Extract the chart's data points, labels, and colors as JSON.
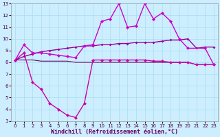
{
  "background_color": "#cceeff",
  "grid_color": "#aaddee",
  "xlim": [
    -0.5,
    23.5
  ],
  "ylim": [
    3,
    13
  ],
  "xlabel": "Windchill (Refroidissement éolien,°C)",
  "xticks": [
    0,
    1,
    2,
    3,
    4,
    5,
    6,
    7,
    8,
    9,
    10,
    11,
    12,
    13,
    14,
    15,
    16,
    17,
    18,
    19,
    20,
    21,
    22,
    23
  ],
  "yticks": [
    3,
    4,
    5,
    6,
    7,
    8,
    9,
    10,
    11,
    12,
    13
  ],
  "lines": [
    {
      "x": [
        0,
        1,
        2,
        3,
        4,
        5,
        6,
        7,
        8,
        9,
        10,
        11,
        12,
        13,
        14,
        15,
        16,
        17,
        18,
        19,
        20,
        22,
        23
      ],
      "y": [
        8.2,
        9.5,
        8.8,
        8.8,
        8.7,
        8.6,
        8.5,
        8.4,
        9.4,
        9.5,
        11.5,
        11.7,
        13.0,
        11.0,
        11.1,
        13.0,
        11.7,
        12.2,
        11.5,
        10.0,
        9.2,
        9.2,
        7.8
      ],
      "color": "#cc00cc",
      "linewidth": 1.0,
      "marker": "D",
      "markersize": 2.5,
      "zorder": 5
    },
    {
      "x": [
        0,
        1,
        2,
        3,
        4,
        5,
        6,
        7,
        8,
        9,
        10,
        11,
        12,
        13,
        14,
        15,
        16,
        17,
        18,
        19,
        20,
        21,
        22,
        23
      ],
      "y": [
        8.2,
        8.5,
        8.7,
        8.9,
        9.0,
        9.1,
        9.2,
        9.3,
        9.4,
        9.4,
        9.5,
        9.5,
        9.6,
        9.6,
        9.7,
        9.7,
        9.7,
        9.8,
        9.9,
        9.9,
        10.0,
        9.2,
        9.3,
        9.3
      ],
      "color": "#990099",
      "linewidth": 1.0,
      "marker": "D",
      "markersize": 2.0,
      "zorder": 4
    },
    {
      "x": [
        0,
        1,
        2,
        3,
        4,
        5,
        6,
        7,
        8,
        9,
        10,
        11,
        12,
        13,
        14,
        15,
        16,
        17,
        18,
        19,
        20,
        21,
        22,
        23
      ],
      "y": [
        8.2,
        8.8,
        6.3,
        5.7,
        4.5,
        4.0,
        3.5,
        3.3,
        4.5,
        8.2,
        8.2,
        8.2,
        8.2,
        8.2,
        8.2,
        8.2,
        8.1,
        8.1,
        8.0,
        8.0,
        8.0,
        7.8,
        7.8,
        7.8
      ],
      "color": "#cc00aa",
      "linewidth": 1.0,
      "marker": "D",
      "markersize": 2.5,
      "zorder": 3
    },
    {
      "x": [
        0,
        1,
        2,
        3,
        4,
        5,
        6,
        7,
        8,
        9,
        10,
        11,
        12,
        13,
        14,
        15,
        16,
        17,
        18,
        19,
        20,
        21,
        22,
        23
      ],
      "y": [
        8.2,
        8.2,
        8.2,
        8.1,
        8.1,
        8.1,
        8.1,
        8.0,
        8.0,
        8.0,
        8.0,
        8.0,
        8.0,
        8.0,
        8.0,
        8.0,
        8.0,
        8.0,
        8.0,
        8.0,
        8.0,
        7.8,
        7.8,
        7.8
      ],
      "color": "#660066",
      "linewidth": 0.8,
      "marker": null,
      "markersize": 0,
      "zorder": 2
    }
  ],
  "xlabel_color": "#660066",
  "xlabel_fontsize": 6,
  "tick_fontsize": 5,
  "tick_color": "#440044"
}
